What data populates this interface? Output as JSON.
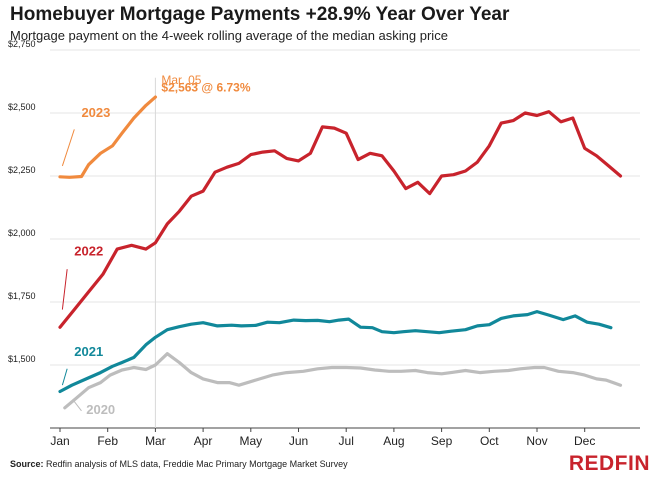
{
  "header": {
    "title": "Homebuyer Mortgage Payments +28.9% Year Over Year",
    "subtitle": "Mortgage payment on the 4-week rolling average of the median asking price"
  },
  "footer": {
    "source_label": "Source:",
    "source_text": " Redfin analysis of MLS data, Freddie Mac Primary Mortgage Market Survey",
    "brand": "REDFIN"
  },
  "chart_data": {
    "type": "line",
    "x_ticks": [
      "Jan",
      "Feb",
      "Mar",
      "Apr",
      "May",
      "Jun",
      "Jul",
      "Aug",
      "Sep",
      "Oct",
      "Nov",
      "Dec"
    ],
    "xlim": [
      1,
      12.75
    ],
    "ylim": [
      1250,
      2750
    ],
    "y_ticks": [
      1500,
      1750,
      2000,
      2250,
      2500,
      2750
    ],
    "y_tick_labels": [
      "$1,500",
      "$1,750",
      "$2,000",
      "$2,250",
      "$2,500",
      "$2,750"
    ],
    "annotation": {
      "x": 3.0,
      "line1": "Mar. 05",
      "line2": "$2,563 @ 6.73%",
      "color": "#f08a3e"
    },
    "series": [
      {
        "name": "2020",
        "color": "#bdbdbd",
        "x": [
          1.1,
          1.35,
          1.6,
          1.85,
          2.05,
          2.3,
          2.55,
          2.8,
          3.0,
          3.25,
          3.5,
          3.75,
          4.0,
          4.3,
          4.55,
          4.75,
          5.1,
          5.45,
          5.75,
          6.1,
          6.4,
          6.7,
          7.0,
          7.3,
          7.6,
          7.9,
          8.15,
          8.45,
          8.7,
          9.0,
          9.2,
          9.5,
          9.8,
          10.1,
          10.4,
          10.65,
          10.95,
          11.15,
          11.45,
          11.75,
          12.0,
          12.25,
          12.45,
          12.75
        ],
        "y": [
          1330,
          1370,
          1410,
          1430,
          1460,
          1480,
          1490,
          1482,
          1500,
          1545,
          1510,
          1470,
          1445,
          1430,
          1430,
          1420,
          1440,
          1460,
          1470,
          1475,
          1485,
          1490,
          1490,
          1488,
          1480,
          1475,
          1475,
          1478,
          1470,
          1465,
          1470,
          1478,
          1470,
          1475,
          1478,
          1485,
          1490,
          1490,
          1475,
          1470,
          1460,
          1445,
          1440,
          1420
        ]
      },
      {
        "name": "2021",
        "color": "#11889a",
        "x": [
          1.0,
          1.25,
          1.55,
          1.85,
          2.1,
          2.3,
          2.55,
          2.8,
          3.0,
          3.25,
          3.5,
          3.75,
          4.0,
          4.3,
          4.6,
          4.8,
          5.1,
          5.35,
          5.6,
          5.9,
          6.15,
          6.4,
          6.65,
          6.85,
          7.05,
          7.3,
          7.55,
          7.75,
          8.0,
          8.2,
          8.45,
          8.7,
          8.95,
          9.2,
          9.5,
          9.75,
          10.0,
          10.25,
          10.5,
          10.8,
          11.0,
          11.25,
          11.55,
          11.8,
          12.05,
          12.3,
          12.55
        ],
        "y": [
          1395,
          1420,
          1445,
          1470,
          1495,
          1510,
          1530,
          1580,
          1610,
          1640,
          1652,
          1662,
          1668,
          1655,
          1658,
          1655,
          1657,
          1670,
          1668,
          1678,
          1676,
          1677,
          1672,
          1678,
          1682,
          1650,
          1648,
          1632,
          1628,
          1632,
          1636,
          1632,
          1628,
          1634,
          1640,
          1655,
          1660,
          1685,
          1695,
          1700,
          1712,
          1698,
          1680,
          1695,
          1670,
          1662,
          1648
        ]
      },
      {
        "name": "2022",
        "color": "#c8232c",
        "x": [
          1.0,
          1.3,
          1.6,
          1.9,
          2.2,
          2.5,
          2.8,
          3.0,
          3.25,
          3.5,
          3.75,
          4.0,
          4.25,
          4.5,
          4.75,
          5.0,
          5.25,
          5.5,
          5.75,
          6.0,
          6.25,
          6.5,
          6.75,
          7.0,
          7.25,
          7.5,
          7.75,
          8.0,
          8.25,
          8.5,
          8.75,
          9.0,
          9.25,
          9.5,
          9.75,
          10.0,
          10.25,
          10.5,
          10.75,
          11.0,
          11.25,
          11.5,
          11.75,
          12.0,
          12.25,
          12.5,
          12.75
        ],
        "y": [
          1650,
          1720,
          1790,
          1860,
          1960,
          1975,
          1960,
          1985,
          2060,
          2110,
          2170,
          2190,
          2265,
          2285,
          2300,
          2335,
          2345,
          2350,
          2320,
          2310,
          2340,
          2445,
          2440,
          2420,
          2315,
          2340,
          2330,
          2270,
          2200,
          2225,
          2180,
          2250,
          2255,
          2270,
          2305,
          2370,
          2460,
          2470,
          2500,
          2490,
          2505,
          2465,
          2480,
          2360,
          2330,
          2290,
          2250
        ]
      },
      {
        "name": "2023",
        "color": "#f08a3e",
        "x": [
          1.0,
          1.2,
          1.45,
          1.6,
          1.85,
          2.1,
          2.3,
          2.55,
          2.8,
          3.0
        ],
        "y": [
          2247,
          2245,
          2248,
          2295,
          2340,
          2370,
          2420,
          2480,
          2530,
          2563
        ]
      }
    ],
    "series_labels": [
      {
        "name": "2023",
        "x": 1.45,
        "y": 2485,
        "color": "#f08a3e"
      },
      {
        "name": "2022",
        "x": 1.3,
        "y": 1935,
        "color": "#c8232c"
      },
      {
        "name": "2021",
        "x": 1.3,
        "y": 1535,
        "color": "#11889a"
      },
      {
        "name": "2020",
        "x": 1.55,
        "y": 1305,
        "color": "#bdbdbd"
      }
    ]
  }
}
